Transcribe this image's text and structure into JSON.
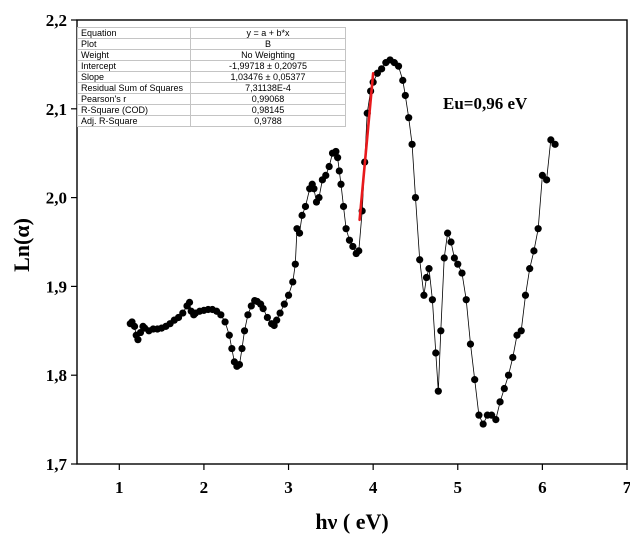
{
  "chart_data": {
    "type": "scatter",
    "xlabel": "hν ( eV)",
    "ylabel": "Ln(α)",
    "xlim": [
      0.5,
      7
    ],
    "ylim": [
      1.7,
      2.2
    ],
    "x_ticks": [
      "1",
      "2",
      "3",
      "4",
      "5",
      "6",
      "7"
    ],
    "y_ticks": [
      "1,7",
      "1,8",
      "1,9",
      "2,0",
      "2,1",
      "2,2"
    ],
    "x_tick_values": [
      1,
      2,
      3,
      4,
      5,
      6,
      7
    ],
    "y_tick_values": [
      1.7,
      1.8,
      1.9,
      2.0,
      2.1,
      2.2
    ],
    "annotation": "Eu=0,96 eV",
    "series": [
      {
        "style": "black markers joined by a thin line",
        "x": [
          1.13,
          1.15,
          1.18,
          1.2,
          1.22,
          1.25,
          1.28,
          1.3,
          1.35,
          1.4,
          1.45,
          1.5,
          1.55,
          1.6,
          1.65,
          1.7,
          1.75,
          1.8,
          1.83,
          1.85,
          1.88,
          1.9,
          1.95,
          2.0,
          2.05,
          2.1,
          2.15,
          2.2,
          2.25,
          2.3,
          2.33,
          2.36,
          2.39,
          2.42,
          2.45,
          2.48,
          2.52,
          2.56,
          2.6,
          2.63,
          2.67,
          2.7,
          2.75,
          2.8,
          2.83,
          2.86,
          2.9,
          2.95,
          3.0,
          3.05,
          3.08,
          3.1,
          3.13,
          3.16,
          3.2,
          3.25,
          3.28,
          3.3,
          3.33,
          3.36,
          3.4,
          3.44,
          3.48,
          3.52,
          3.56,
          3.58,
          3.6,
          3.62,
          3.65,
          3.68,
          3.72,
          3.76,
          3.8,
          3.83,
          3.87,
          3.9,
          3.93,
          3.97,
          4.0,
          4.05,
          4.1,
          4.15,
          4.2,
          4.25,
          4.3,
          4.35,
          4.38,
          4.42,
          4.46,
          4.5,
          4.55,
          4.6,
          4.63,
          4.66,
          4.7,
          4.74,
          4.77,
          4.8,
          4.84,
          4.88,
          4.92,
          4.96,
          5.0,
          5.05,
          5.1,
          5.15,
          5.2,
          5.25,
          5.3,
          5.35,
          5.4,
          5.45,
          5.5,
          5.55,
          5.6,
          5.65,
          5.7,
          5.75,
          5.8,
          5.85,
          5.9,
          5.95,
          6.0,
          6.05,
          6.1,
          6.15
        ],
        "y": [
          1.858,
          1.86,
          1.855,
          1.845,
          1.84,
          1.848,
          1.855,
          1.853,
          1.85,
          1.852,
          1.852,
          1.853,
          1.855,
          1.858,
          1.862,
          1.865,
          1.87,
          1.878,
          1.882,
          1.872,
          1.868,
          1.87,
          1.872,
          1.873,
          1.874,
          1.874,
          1.872,
          1.868,
          1.86,
          1.845,
          1.83,
          1.815,
          1.81,
          1.812,
          1.83,
          1.85,
          1.868,
          1.878,
          1.884,
          1.883,
          1.88,
          1.875,
          1.865,
          1.858,
          1.856,
          1.862,
          1.87,
          1.88,
          1.89,
          1.905,
          1.925,
          1.965,
          1.96,
          1.98,
          1.99,
          2.01,
          2.015,
          2.01,
          1.995,
          2.0,
          2.02,
          2.025,
          2.035,
          2.05,
          2.052,
          2.045,
          2.03,
          2.015,
          1.99,
          1.965,
          1.952,
          1.945,
          1.937,
          1.94,
          1.985,
          2.04,
          2.095,
          2.12,
          2.13,
          2.14,
          2.145,
          2.152,
          2.155,
          2.152,
          2.148,
          2.132,
          2.115,
          2.09,
          2.06,
          2.0,
          1.93,
          1.89,
          1.91,
          1.92,
          1.885,
          1.825,
          1.782,
          1.85,
          1.932,
          1.96,
          1.95,
          1.932,
          1.925,
          1.915,
          1.885,
          1.835,
          1.795,
          1.755,
          1.745,
          1.755,
          1.755,
          1.75,
          1.77,
          1.785,
          1.8,
          1.82,
          1.845,
          1.85,
          1.89,
          1.92,
          1.94,
          1.965,
          2.025,
          2.02,
          2.065,
          2.06
        ]
      },
      {
        "style": "red fit line",
        "x": [
          3.84,
          4.0
        ],
        "y": [
          1.975,
          2.14
        ]
      }
    ]
  },
  "fit_table": {
    "rows": [
      {
        "key": "Equation",
        "value": "y = a + b*x"
      },
      {
        "key": "Plot",
        "value": "B"
      },
      {
        "key": "Weight",
        "value": "No Weighting"
      },
      {
        "key": "Intercept",
        "value": "-1,99718 ± 0,20975"
      },
      {
        "key": "Slope",
        "value": "1,03476 ± 0,05377"
      },
      {
        "key": "Residual Sum of Squares",
        "value": "7,31138E-4"
      },
      {
        "key": "Pearson's r",
        "value": "0,99068"
      },
      {
        "key": "R-Square (COD)",
        "value": "0,98145"
      },
      {
        "key": "Adj. R-Square",
        "value": "0,9788"
      }
    ]
  },
  "colors": {
    "markers": "#000000",
    "fit_line": "#e8191c",
    "axes": "#000000"
  }
}
